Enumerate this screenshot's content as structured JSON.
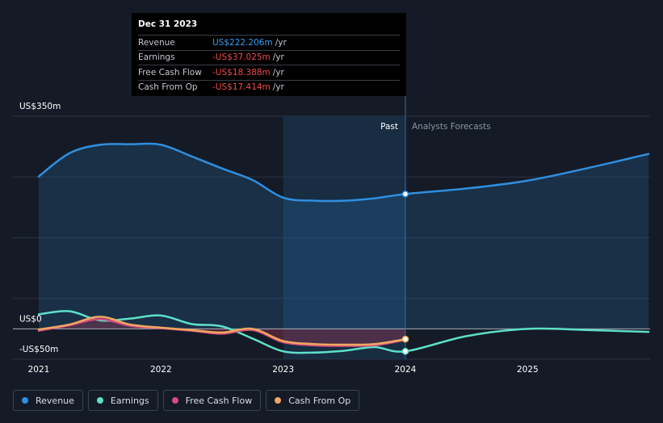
{
  "tooltip": {
    "date": "Dec 31 2023",
    "rows": [
      {
        "label": "Revenue",
        "value": "US$222.206m",
        "unit": "/yr",
        "color": "#3a9ff0"
      },
      {
        "label": "Earnings",
        "value": "-US$37.025m",
        "unit": "/yr",
        "color": "#ef4b4b"
      },
      {
        "label": "Free Cash Flow",
        "value": "-US$18.388m",
        "unit": "/yr",
        "color": "#ef4b4b"
      },
      {
        "label": "Cash From Op",
        "value": "-US$17.414m",
        "unit": "/yr",
        "color": "#ef4b4b"
      }
    ]
  },
  "legend": [
    {
      "label": "Revenue",
      "color": "#2f8fe0"
    },
    {
      "label": "Earnings",
      "color": "#5ee0c8"
    },
    {
      "label": "Free Cash Flow",
      "color": "#d64c7f"
    },
    {
      "label": "Cash From Op",
      "color": "#f0a860"
    }
  ],
  "chart_data": {
    "type": "line",
    "x_tick_labels": [
      "2021",
      "2022",
      "2023",
      "2024",
      "2025"
    ],
    "y_tick_labels": [
      "US$350m",
      "US$0",
      "-US$50m"
    ],
    "ylim": [
      -50,
      350
    ],
    "xlim": [
      2021.0,
      2025.99
    ],
    "past_label": "Past",
    "forecast_label": "Analysts Forecasts",
    "past_region": [
      2023.0,
      2024.0
    ],
    "series": [
      {
        "name": "Revenue",
        "color": "#2f8fe0",
        "points": [
          [
            2021.0,
            251
          ],
          [
            2021.25,
            289
          ],
          [
            2021.5,
            303
          ],
          [
            2021.75,
            304
          ],
          [
            2022.0,
            303
          ],
          [
            2022.25,
            284
          ],
          [
            2022.5,
            264
          ],
          [
            2022.75,
            245
          ],
          [
            2023.0,
            216
          ],
          [
            2023.25,
            211
          ],
          [
            2023.5,
            211
          ],
          [
            2023.75,
            215
          ],
          [
            2024.0,
            222
          ],
          [
            2024.5,
            231
          ],
          [
            2025.0,
            244
          ],
          [
            2025.5,
            265
          ],
          [
            2025.99,
            288
          ]
        ]
      },
      {
        "name": "Earnings",
        "color": "#5ee0c8",
        "points": [
          [
            2021.0,
            24
          ],
          [
            2021.25,
            29
          ],
          [
            2021.5,
            14
          ],
          [
            2021.75,
            17
          ],
          [
            2022.0,
            22
          ],
          [
            2022.25,
            8
          ],
          [
            2022.5,
            4
          ],
          [
            2022.75,
            -16
          ],
          [
            2023.0,
            -37
          ],
          [
            2023.25,
            -39
          ],
          [
            2023.5,
            -36
          ],
          [
            2023.75,
            -30
          ],
          [
            2024.0,
            -37
          ],
          [
            2024.5,
            -12
          ],
          [
            2025.0,
            0
          ],
          [
            2025.5,
            -2
          ],
          [
            2025.99,
            -5
          ]
        ]
      },
      {
        "name": "Free Cash Flow",
        "color": "#d64c7f",
        "points": [
          [
            2021.0,
            -3
          ],
          [
            2021.25,
            6
          ],
          [
            2021.5,
            16
          ],
          [
            2021.75,
            5
          ],
          [
            2022.0,
            1
          ],
          [
            2022.25,
            -3
          ],
          [
            2022.5,
            -8
          ],
          [
            2022.75,
            -2
          ],
          [
            2023.0,
            -22
          ],
          [
            2023.25,
            -27
          ],
          [
            2023.5,
            -28
          ],
          [
            2023.75,
            -27
          ],
          [
            2024.0,
            -18
          ]
        ]
      },
      {
        "name": "Cash From Op",
        "color": "#f0a860",
        "points": [
          [
            2021.0,
            -1
          ],
          [
            2021.25,
            7
          ],
          [
            2021.5,
            20
          ],
          [
            2021.75,
            7
          ],
          [
            2022.0,
            2
          ],
          [
            2022.25,
            -2
          ],
          [
            2022.5,
            -6
          ],
          [
            2022.75,
            0
          ],
          [
            2023.0,
            -20
          ],
          [
            2023.25,
            -25
          ],
          [
            2023.5,
            -26
          ],
          [
            2023.75,
            -25
          ],
          [
            2024.0,
            -17
          ]
        ]
      }
    ]
  }
}
